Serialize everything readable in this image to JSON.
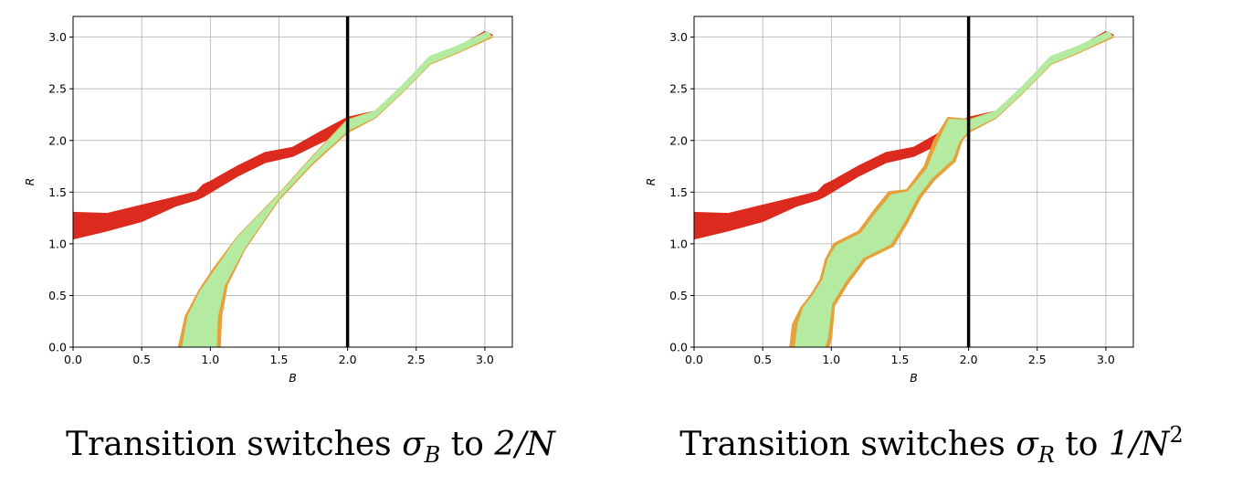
{
  "colors": {
    "red_band": "#dc2a1f",
    "green_band": "#b4eba0",
    "orange_edge": "#e5a13a",
    "threshold_line": "#000000",
    "grid": "#b0b0b0"
  },
  "chart_data": [
    {
      "type": "area",
      "title": "",
      "xlabel": "B",
      "ylabel": "R",
      "xlim": [
        0,
        3.2
      ],
      "ylim": [
        0,
        3.2
      ],
      "xticks": [
        "0.0",
        "0.5",
        "1.0",
        "1.5",
        "2.0",
        "2.5",
        "3.0"
      ],
      "yticks": [
        "0.0",
        "0.5",
        "1.0",
        "1.5",
        "2.0",
        "2.5",
        "3.0"
      ],
      "grid": true,
      "vline_x": 2.0,
      "caption_prefix": "Transition switches ",
      "caption_symbol": "σ",
      "caption_subscript": "B",
      "caption_middle": " to ",
      "caption_value": "2/N",
      "caption_exponent": "",
      "series": [
        {
          "color_key": "red_band",
          "upper": [
            [
              0,
              1.3
            ],
            [
              0.25,
              1.29
            ],
            [
              0.5,
              1.37
            ],
            [
              0.75,
              1.45
            ],
            [
              0.9,
              1.5
            ],
            [
              0.95,
              1.57
            ],
            [
              1.0,
              1.6
            ],
            [
              1.2,
              1.75
            ],
            [
              1.4,
              1.88
            ],
            [
              1.6,
              1.93
            ],
            [
              1.8,
              2.08
            ],
            [
              2.0,
              2.22
            ],
            [
              2.2,
              2.28
            ],
            [
              2.4,
              2.52
            ],
            [
              2.6,
              2.8
            ],
            [
              2.8,
              2.9
            ],
            [
              3.0,
              3.05
            ]
          ],
          "lower": [
            [
              3.05,
              3.02
            ],
            [
              2.8,
              2.86
            ],
            [
              2.6,
              2.75
            ],
            [
              2.4,
              2.48
            ],
            [
              2.2,
              2.23
            ],
            [
              2.0,
              2.1
            ],
            [
              1.8,
              1.98
            ],
            [
              1.6,
              1.85
            ],
            [
              1.4,
              1.79
            ],
            [
              1.2,
              1.66
            ],
            [
              1.0,
              1.5
            ],
            [
              0.95,
              1.46
            ],
            [
              0.9,
              1.43
            ],
            [
              0.75,
              1.37
            ],
            [
              0.5,
              1.22
            ],
            [
              0.25,
              1.13
            ],
            [
              0,
              1.05
            ]
          ]
        },
        {
          "color_key": "orange_edge",
          "upper": [
            [
              0.77,
              0
            ],
            [
              0.82,
              0.3
            ],
            [
              0.92,
              0.55
            ],
            [
              1.02,
              0.75
            ],
            [
              1.2,
              1.07
            ],
            [
              1.5,
              1.48
            ],
            [
              1.75,
              1.85
            ],
            [
              2.0,
              2.2
            ],
            [
              2.2,
              2.28
            ],
            [
              2.4,
              2.52
            ],
            [
              2.6,
              2.8
            ],
            [
              2.8,
              2.9
            ],
            [
              3.02,
              3.04
            ]
          ],
          "lower": [
            [
              3.05,
              3.0
            ],
            [
              2.8,
              2.85
            ],
            [
              2.6,
              2.74
            ],
            [
              2.4,
              2.47
            ],
            [
              2.2,
              2.22
            ],
            [
              2.0,
              2.08
            ],
            [
              1.75,
              1.78
            ],
            [
              1.5,
              1.43
            ],
            [
              1.25,
              0.95
            ],
            [
              1.12,
              0.6
            ],
            [
              1.08,
              0.3
            ],
            [
              1.07,
              0
            ]
          ]
        },
        {
          "color_key": "green_band",
          "upper": [
            [
              0.8,
              0
            ],
            [
              0.84,
              0.3
            ],
            [
              0.93,
              0.54
            ],
            [
              1.04,
              0.75
            ],
            [
              1.2,
              1.06
            ],
            [
              1.5,
              1.47
            ],
            [
              1.75,
              1.84
            ],
            [
              2.0,
              2.19
            ],
            [
              2.2,
              2.28
            ],
            [
              2.4,
              2.53
            ],
            [
              2.6,
              2.81
            ],
            [
              2.8,
              2.91
            ],
            [
              3.02,
              3.05
            ]
          ],
          "lower": [
            [
              3.04,
              3.01
            ],
            [
              2.8,
              2.86
            ],
            [
              2.6,
              2.75
            ],
            [
              2.4,
              2.48
            ],
            [
              2.2,
              2.23
            ],
            [
              2.0,
              2.1
            ],
            [
              1.75,
              1.8
            ],
            [
              1.5,
              1.45
            ],
            [
              1.25,
              0.97
            ],
            [
              1.1,
              0.6
            ],
            [
              1.05,
              0.3
            ],
            [
              1.04,
              0
            ]
          ]
        }
      ]
    },
    {
      "type": "area",
      "title": "",
      "xlabel": "B",
      "ylabel": "R",
      "xlim": [
        0,
        3.2
      ],
      "ylim": [
        0,
        3.2
      ],
      "xticks": [
        "0.0",
        "0.5",
        "1.0",
        "1.5",
        "2.0",
        "2.5",
        "3.0"
      ],
      "yticks": [
        "0.0",
        "0.5",
        "1.0",
        "1.5",
        "2.0",
        "2.5",
        "3.0"
      ],
      "grid": true,
      "vline_x": 2.0,
      "caption_prefix": "Transition switches ",
      "caption_symbol": "σ",
      "caption_subscript": "R",
      "caption_middle": " to ",
      "caption_value": "1/N",
      "caption_exponent": "2",
      "series": [
        {
          "color_key": "red_band",
          "upper": [
            [
              0,
              1.3
            ],
            [
              0.25,
              1.29
            ],
            [
              0.5,
              1.37
            ],
            [
              0.75,
              1.45
            ],
            [
              0.9,
              1.5
            ],
            [
              0.95,
              1.57
            ],
            [
              1.0,
              1.6
            ],
            [
              1.2,
              1.75
            ],
            [
              1.4,
              1.88
            ],
            [
              1.6,
              1.93
            ],
            [
              1.8,
              2.08
            ],
            [
              2.0,
              2.22
            ],
            [
              2.2,
              2.28
            ],
            [
              2.4,
              2.52
            ],
            [
              2.6,
              2.8
            ],
            [
              2.8,
              2.9
            ],
            [
              3.0,
              3.05
            ]
          ],
          "lower": [
            [
              3.05,
              3.02
            ],
            [
              2.8,
              2.86
            ],
            [
              2.6,
              2.75
            ],
            [
              2.4,
              2.48
            ],
            [
              2.2,
              2.23
            ],
            [
              2.0,
              2.1
            ],
            [
              1.8,
              1.98
            ],
            [
              1.6,
              1.85
            ],
            [
              1.4,
              1.79
            ],
            [
              1.2,
              1.66
            ],
            [
              1.0,
              1.5
            ],
            [
              0.95,
              1.46
            ],
            [
              0.9,
              1.43
            ],
            [
              0.75,
              1.37
            ],
            [
              0.5,
              1.22
            ],
            [
              0.25,
              1.13
            ],
            [
              0,
              1.05
            ]
          ]
        },
        {
          "color_key": "orange_edge",
          "upper": [
            [
              0.7,
              0
            ],
            [
              0.72,
              0.22
            ],
            [
              0.78,
              0.38
            ],
            [
              0.85,
              0.5
            ],
            [
              0.92,
              0.65
            ],
            [
              0.96,
              0.85
            ],
            [
              1.02,
              1.0
            ],
            [
              1.2,
              1.12
            ],
            [
              1.3,
              1.3
            ],
            [
              1.42,
              1.5
            ],
            [
              1.55,
              1.52
            ],
            [
              1.68,
              1.75
            ],
            [
              1.75,
              2.0
            ],
            [
              1.85,
              2.22
            ],
            [
              2.0,
              2.2
            ],
            [
              2.2,
              2.28
            ],
            [
              2.4,
              2.52
            ],
            [
              2.6,
              2.8
            ],
            [
              2.8,
              2.9
            ],
            [
              3.02,
              3.04
            ]
          ],
          "lower": [
            [
              3.05,
              3.0
            ],
            [
              2.8,
              2.85
            ],
            [
              2.6,
              2.74
            ],
            [
              2.4,
              2.47
            ],
            [
              2.2,
              2.22
            ],
            [
              2.0,
              2.08
            ],
            [
              1.95,
              2.0
            ],
            [
              1.9,
              1.8
            ],
            [
              1.75,
              1.62
            ],
            [
              1.65,
              1.45
            ],
            [
              1.55,
              1.2
            ],
            [
              1.45,
              0.98
            ],
            [
              1.25,
              0.85
            ],
            [
              1.12,
              0.62
            ],
            [
              1.02,
              0.4
            ],
            [
              1.0,
              0.1
            ],
            [
              0.98,
              0
            ]
          ]
        },
        {
          "color_key": "green_band",
          "upper": [
            [
              0.74,
              0
            ],
            [
              0.76,
              0.22
            ],
            [
              0.8,
              0.38
            ],
            [
              0.87,
              0.5
            ],
            [
              0.94,
              0.65
            ],
            [
              0.98,
              0.85
            ],
            [
              1.04,
              0.98
            ],
            [
              1.22,
              1.1
            ],
            [
              1.32,
              1.28
            ],
            [
              1.44,
              1.47
            ],
            [
              1.56,
              1.5
            ],
            [
              1.7,
              1.72
            ],
            [
              1.78,
              1.98
            ],
            [
              1.86,
              2.2
            ],
            [
              2.0,
              2.19
            ],
            [
              2.2,
              2.28
            ],
            [
              2.4,
              2.53
            ],
            [
              2.6,
              2.81
            ],
            [
              2.8,
              2.91
            ],
            [
              3.02,
              3.05
            ]
          ],
          "lower": [
            [
              3.04,
              3.01
            ],
            [
              2.8,
              2.86
            ],
            [
              2.6,
              2.75
            ],
            [
              2.4,
              2.48
            ],
            [
              2.2,
              2.23
            ],
            [
              2.0,
              2.1
            ],
            [
              1.93,
              2.0
            ],
            [
              1.88,
              1.82
            ],
            [
              1.73,
              1.64
            ],
            [
              1.63,
              1.47
            ],
            [
              1.53,
              1.22
            ],
            [
              1.43,
              1.0
            ],
            [
              1.23,
              0.87
            ],
            [
              1.1,
              0.64
            ],
            [
              1.0,
              0.42
            ],
            [
              0.97,
              0.1
            ],
            [
              0.95,
              0
            ]
          ]
        }
      ]
    }
  ]
}
